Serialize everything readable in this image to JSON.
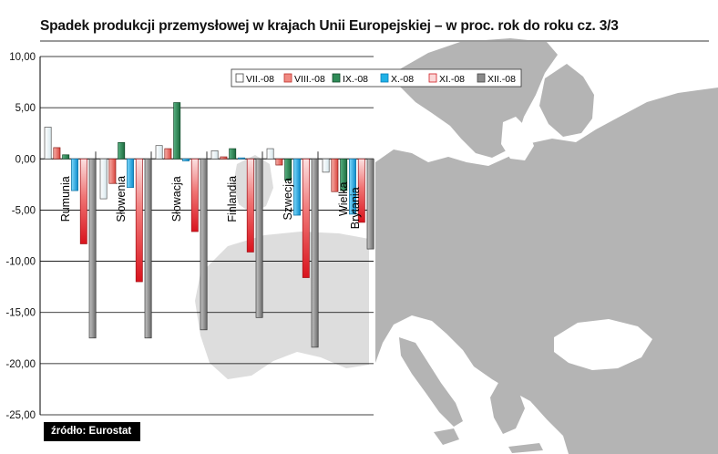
{
  "title": "Spadek produkcji przemysłowej w krajach Unii Europejskiej – w proc. rok  do roku cz. 3/3",
  "source": "źródło: Eurostat",
  "colors": {
    "map_land": "#b4b4b4",
    "map_land_light": "#d6d6d6",
    "title_rule": "#9a9a9a"
  },
  "chart_data": {
    "type": "bar",
    "ylim": [
      -25,
      10
    ],
    "yticks": [
      "10,00",
      "5,00",
      "0,00",
      "-5,00",
      "-10,00",
      "-15,00",
      "-20,00",
      "-25,00"
    ],
    "ytick_values": [
      10,
      5,
      0,
      -5,
      -10,
      -15,
      -20,
      -25
    ],
    "grid": true,
    "legend_position": "top-right",
    "categories": [
      "Rumunia",
      "Słowenia",
      "Słowacja",
      "Finlandia",
      "Szwecja",
      "Wielka Brytania"
    ],
    "series": [
      {
        "name": "VII.-08",
        "color": "#ffffff",
        "values": [
          3.1,
          -3.9,
          1.3,
          0.8,
          1.0,
          -1.3
        ]
      },
      {
        "name": "VIII.-08",
        "color": "#e8605a",
        "values": [
          1.1,
          -2.4,
          1.0,
          0.2,
          -0.6,
          -3.2
        ]
      },
      {
        "name": "IX.-08",
        "color": "#2e8b57",
        "values": [
          0.4,
          1.6,
          5.5,
          1.0,
          -2.1,
          -3.1
        ]
      },
      {
        "name": "X.-08",
        "color": "#1fb1e6",
        "values": [
          -3.1,
          -2.8,
          -0.2,
          0.1,
          -5.5,
          -5.4
        ]
      },
      {
        "name": "XI.-08",
        "color": "#e3232b",
        "values": [
          -8.3,
          -12.0,
          -7.1,
          -9.1,
          -11.6,
          -6.2
        ]
      },
      {
        "name": "XII.-08",
        "color": "#8a8a8a",
        "values": [
          -17.5,
          -17.5,
          -16.7,
          -15.5,
          -18.4,
          -8.8
        ]
      }
    ]
  }
}
